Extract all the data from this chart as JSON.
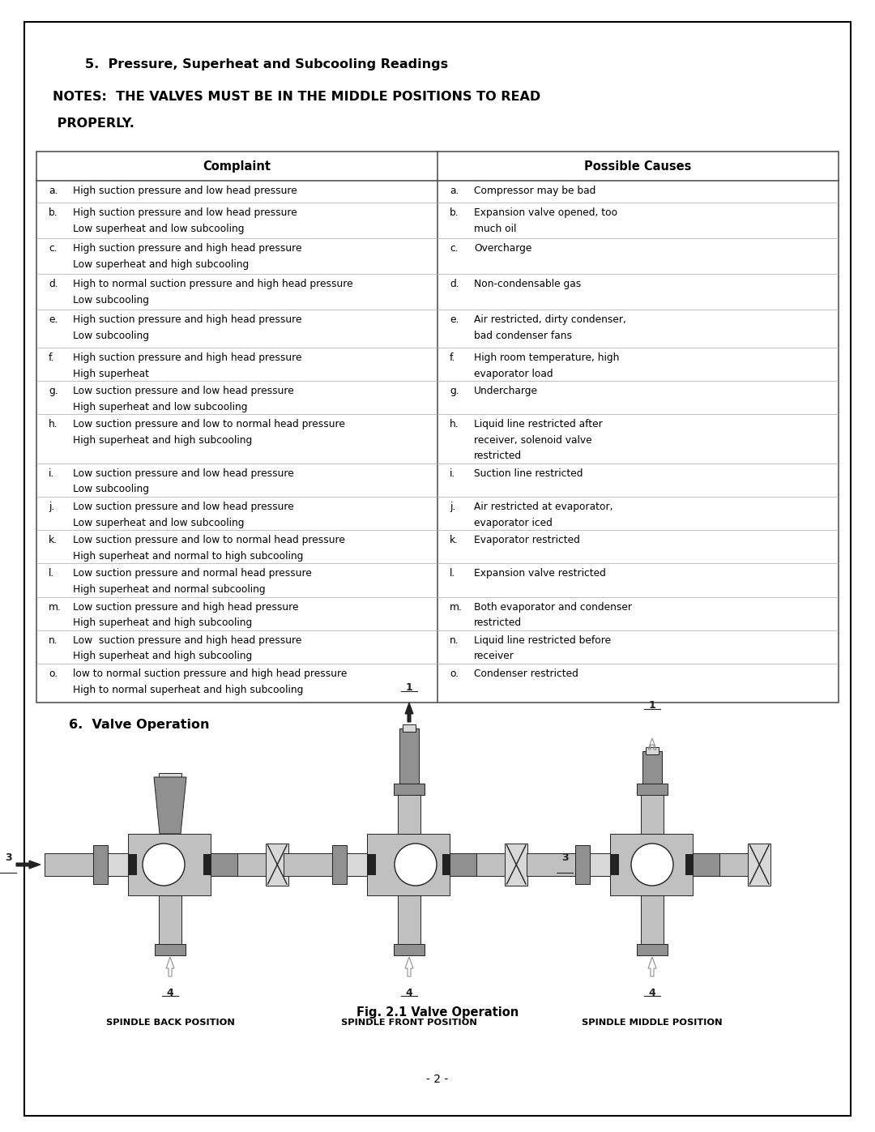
{
  "title_section": "5.  Pressure, Superheat and Subcooling Readings",
  "notes_line1": "NOTES:  THE VALVES MUST BE IN THE MIDDLE POSITIONS TO READ",
  "notes_line2": " PROPERLY.",
  "table_header_left": "Complaint",
  "table_header_right": "Possible Causes",
  "complaints": [
    [
      "a.",
      "High suction pressure and low head pressure"
    ],
    [
      "b.",
      "High suction pressure and low head pressure\nLow superheat and low subcooling"
    ],
    [
      "c.",
      "High suction pressure and high head pressure\nLow superheat and high subcooling"
    ],
    [
      "d.",
      "High to normal suction pressure and high head pressure\nLow subcooling"
    ],
    [
      "e.",
      "High suction pressure and high head pressure\nLow subcooling"
    ],
    [
      "f.",
      "High suction pressure and high head pressure\nHigh superheat"
    ],
    [
      "g.",
      "Low suction pressure and low head pressure\nHigh superheat and low subcooling"
    ],
    [
      "h.",
      "Low suction pressure and low to normal head pressure\nHigh superheat and high subcooling"
    ],
    [
      "i.",
      "Low suction pressure and low head pressure\nLow subcooling"
    ],
    [
      "j.",
      "Low suction pressure and low head pressure\nLow superheat and low subcooling"
    ],
    [
      "k.",
      "Low suction pressure and low to normal head pressure\nHigh superheat and normal to high subcooling"
    ],
    [
      "l.",
      "Low suction pressure and normal head pressure\nHigh superheat and normal subcooling"
    ],
    [
      "m.",
      "Low suction pressure and high head pressure\nHigh superheat and high subcooling"
    ],
    [
      "n.",
      "Low  suction pressure and high head pressure\nHigh superheat and high subcooling"
    ],
    [
      "o.",
      "low to normal suction pressure and high head pressure\nHigh to normal superheat and high subcooling"
    ]
  ],
  "causes": [
    [
      "a.",
      "Compressor may be bad"
    ],
    [
      "b.",
      "Expansion valve opened, too\nmuch oil"
    ],
    [
      "c.",
      "Overcharge"
    ],
    [
      "d.",
      "Non-condensable gas"
    ],
    [
      "e.",
      "Air restricted, dirty condenser,\nbad condenser fans"
    ],
    [
      "f.",
      "High room temperature, high\nevaporator load"
    ],
    [
      "g.",
      "Undercharge"
    ],
    [
      "h.",
      "Liquid line restricted after\nreceiver, solenoid valve\nrestricted"
    ],
    [
      "i.",
      "Suction line restricted"
    ],
    [
      "j.",
      "Air restricted at evaporator,\nevaporator iced"
    ],
    [
      "k.",
      "Evaporator restricted"
    ],
    [
      "l.",
      "Expansion valve restricted"
    ],
    [
      "m.",
      "Both evaporator and condenser\nrestricted"
    ],
    [
      "n.",
      "Liquid line restricted before\nreceiver"
    ],
    [
      "o.",
      "Condenser restricted"
    ]
  ],
  "section6_title": "6.  Valve Operation",
  "valve_labels": [
    "SPINDLE BACK POSITION",
    "SPINDLE FRONT POSITION",
    "SPINDLE MIDDLE POSITION"
  ],
  "fig_caption": "Fig. 2.1 Valve Operation",
  "page_number": "- 2 -",
  "bg_color": "#ffffff",
  "border_color": "#000000",
  "text_color": "#000000",
  "table_border_color": "#555555"
}
